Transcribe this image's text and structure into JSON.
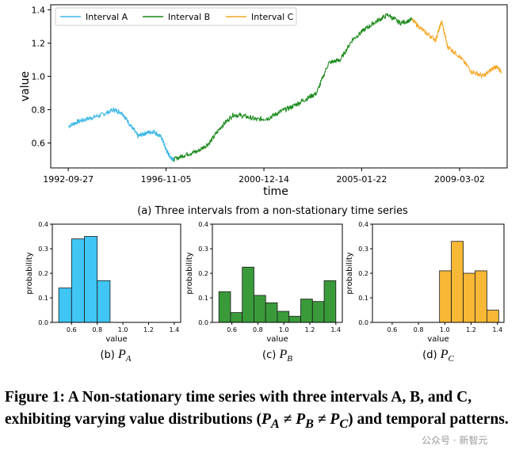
{
  "chart_data": [
    {
      "type": "line",
      "caption": "(a) Three intervals from a non-stationary time series",
      "xlabel": "time",
      "ylabel": "value",
      "x_ticks": [
        "1992-09-27",
        "1996-11-05",
        "2000-12-14",
        "2005-01-22",
        "2009-03-02"
      ],
      "y_ticks": [
        "0.6",
        "0.8",
        "1.0",
        "1.2",
        "1.4"
      ],
      "ylim": [
        0.45,
        1.43
      ],
      "xlim": [
        "1992-01",
        "2011-03"
      ],
      "legend_position": "top-left",
      "series": [
        {
          "name": "Interval A",
          "color": "#3fb8e8",
          "x": [
            "1992-09-27",
            "1993-03",
            "1993-09",
            "1994-03",
            "1994-09",
            "1995-01",
            "1995-05",
            "1995-09",
            "1996-01",
            "1996-05",
            "1996-09",
            "1996-11-05",
            "1997-01",
            "1997-03"
          ],
          "y": [
            0.7,
            0.73,
            0.75,
            0.77,
            0.8,
            0.78,
            0.71,
            0.64,
            0.66,
            0.67,
            0.63,
            0.56,
            0.52,
            0.5
          ]
        },
        {
          "name": "Interval B",
          "color": "#1a8a1a",
          "x": [
            "1997-03",
            "1997-09",
            "1998-03",
            "1998-09",
            "1999-03",
            "1999-09",
            "2000-03",
            "2000-09",
            "2001-03",
            "2001-09",
            "2002-03",
            "2002-09",
            "2003-03",
            "2003-09",
            "2004-03",
            "2004-09",
            "2005-03",
            "2005-09",
            "2006-03",
            "2006-09",
            "2007-03"
          ],
          "y": [
            0.5,
            0.53,
            0.55,
            0.6,
            0.7,
            0.77,
            0.76,
            0.74,
            0.75,
            0.79,
            0.82,
            0.86,
            0.9,
            1.08,
            1.1,
            1.22,
            1.28,
            1.33,
            1.37,
            1.32,
            1.34
          ]
        },
        {
          "name": "Interval C",
          "color": "#f5a623",
          "x": [
            "2007-03",
            "2007-09",
            "2008-03",
            "2008-06",
            "2008-09",
            "2009-03",
            "2009-09",
            "2010-03",
            "2010-09",
            "2010-12"
          ],
          "y": [
            1.34,
            1.27,
            1.22,
            1.33,
            1.18,
            1.12,
            1.03,
            1.0,
            1.06,
            1.03
          ]
        }
      ]
    },
    {
      "type": "bar",
      "caption": "(b) P_A",
      "xlabel": "value",
      "ylabel": "probability",
      "color": "#3fc6f5",
      "bin_width": 0.1,
      "categories": [
        0.55,
        0.65,
        0.75,
        0.85
      ],
      "values": [
        0.14,
        0.34,
        0.35,
        0.17
      ],
      "x_ticks": [
        "0.6",
        "0.8",
        "1.0",
        "1.2",
        "1.4"
      ],
      "y_ticks": [
        "0.0",
        "0.1",
        "0.2",
        "0.3",
        "0.4"
      ],
      "xlim": [
        0.45,
        1.45
      ],
      "ylim": [
        0,
        0.4
      ]
    },
    {
      "type": "bar",
      "caption": "(c) P_B",
      "xlabel": "value",
      "ylabel": "probability",
      "color": "#3a9a3a",
      "bin_width": 0.09,
      "categories": [
        0.545,
        0.635,
        0.725,
        0.815,
        0.905,
        0.995,
        1.085,
        1.175,
        1.265,
        1.355
      ],
      "values": [
        0.125,
        0.04,
        0.225,
        0.11,
        0.08,
        0.045,
        0.025,
        0.095,
        0.085,
        0.17
      ],
      "x_ticks": [
        "0.6",
        "0.8",
        "1.0",
        "1.2",
        "1.4"
      ],
      "y_ticks": [
        "0.0",
        "0.1",
        "0.2",
        "0.3",
        "0.4"
      ],
      "xlim": [
        0.45,
        1.45
      ],
      "ylim": [
        0,
        0.4
      ]
    },
    {
      "type": "bar",
      "caption": "(d) P_C",
      "xlabel": "value",
      "ylabel": "probability",
      "color": "#f7b836",
      "bin_width": 0.09,
      "categories": [
        1.005,
        1.095,
        1.185,
        1.275,
        1.365
      ],
      "values": [
        0.21,
        0.33,
        0.2,
        0.21,
        0.05
      ],
      "x_ticks": [
        "0.6",
        "0.8",
        "1.0",
        "1.2",
        "1.4"
      ],
      "y_ticks": [
        "0.0",
        "0.1",
        "0.2",
        "0.3",
        "0.4"
      ],
      "xlim": [
        0.45,
        1.45
      ],
      "ylim": [
        0,
        0.4
      ]
    }
  ],
  "figure_caption": {
    "prefix": "Figure 1: A Non-stationary time series with three intervals A, B, and C, exhibiting varying value distributions (",
    "p_a": "P",
    "sub_a": "A",
    "neq1": " ≠ ",
    "p_b": "P",
    "sub_b": "B",
    "neq2": " ≠ ",
    "p_c": "P",
    "sub_c": "C",
    "suffix": ") and temporal patterns."
  },
  "watermark": "公众号 · 新智元"
}
